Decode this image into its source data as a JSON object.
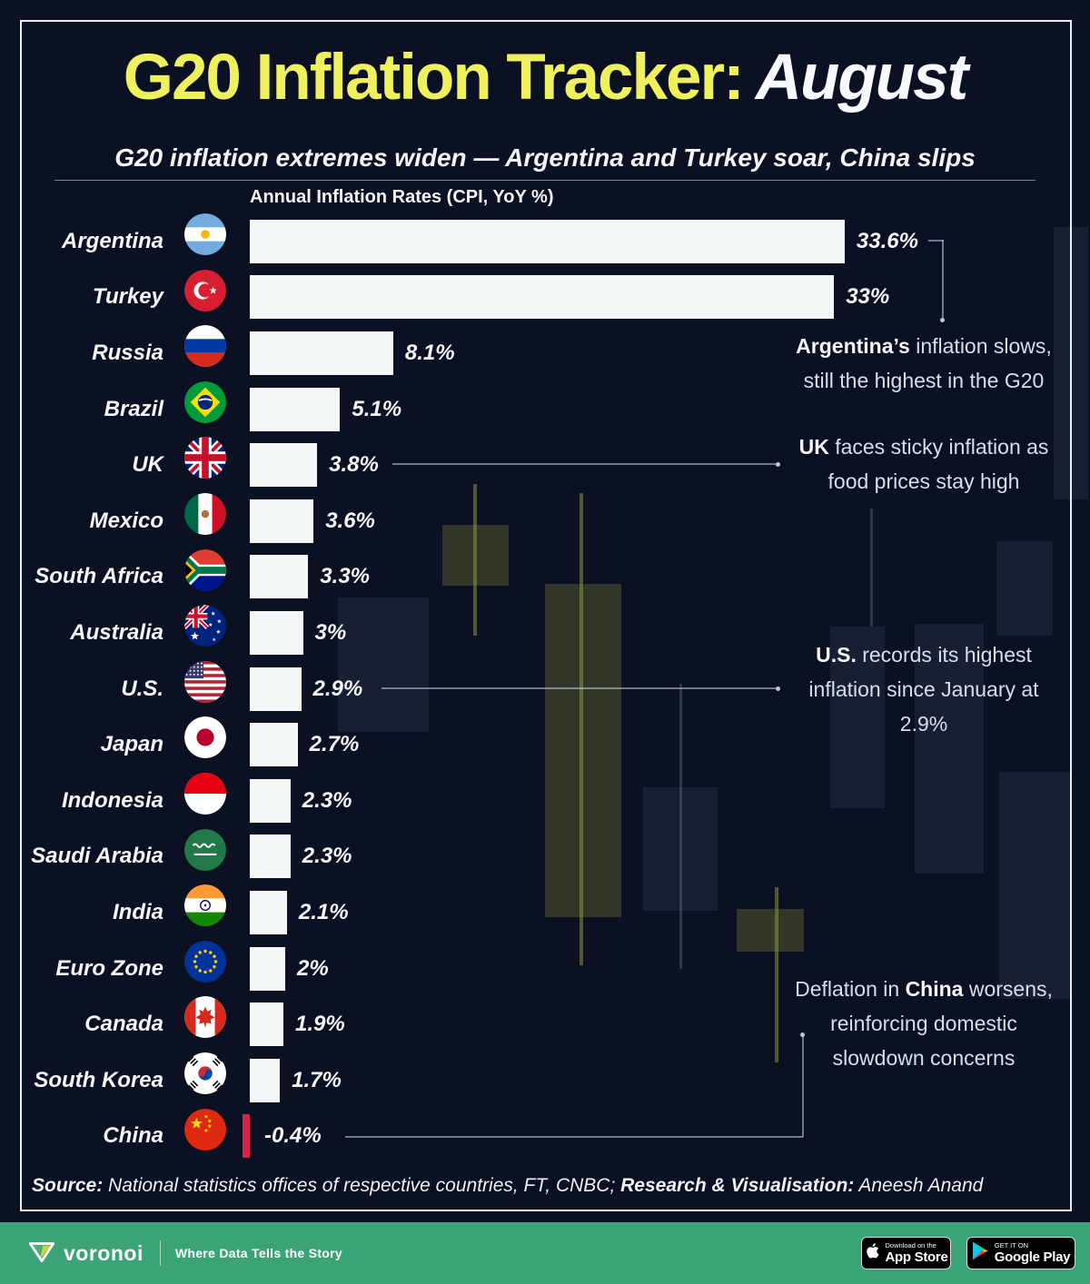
{
  "header": {
    "title_yellow": "G20 Inflation Tracker:",
    "title_white": "August",
    "subtitle": "G20 inflation extremes widen — Argentina and Turkey soar, China slips"
  },
  "chart_data": {
    "type": "bar",
    "orientation": "horizontal",
    "title": "Annual Inflation Rates (CPI, YoY %)",
    "xlim": [
      0,
      33.6
    ],
    "value_suffix": "%",
    "bar_color": "#f3f7f5",
    "negative_bar_color": "#d8214b",
    "categories": [
      "Argentina",
      "Turkey",
      "Russia",
      "Brazil",
      "UK",
      "Mexico",
      "South Africa",
      "Australia",
      "U.S.",
      "Japan",
      "Indonesia",
      "Saudi Arabia",
      "India",
      "Euro Zone",
      "Canada",
      "South Korea",
      "China"
    ],
    "values": [
      33.6,
      33,
      8.1,
      5.1,
      3.8,
      3.6,
      3.3,
      3,
      2.9,
      2.7,
      2.3,
      2.3,
      2.1,
      2,
      1.9,
      1.7,
      -0.4
    ],
    "value_labels": [
      "33.6%",
      "33%",
      "8.1%",
      "5.1%",
      "3.8%",
      "3.6%",
      "3.3%",
      "3%",
      "2.9%",
      "2.7%",
      "2.3%",
      "2.3%",
      "2.1%",
      "2%",
      "1.9%",
      "1.7%",
      "-0.4%"
    ],
    "rows": [
      {
        "country": "Argentina",
        "value": 33.6,
        "label": "33.6%",
        "flag_code": "ar",
        "flag_icon": "argentina-flag-icon"
      },
      {
        "country": "Turkey",
        "value": 33,
        "label": "33%",
        "flag_code": "tr",
        "flag_icon": "turkey-flag-icon"
      },
      {
        "country": "Russia",
        "value": 8.1,
        "label": "8.1%",
        "flag_code": "ru",
        "flag_icon": "russia-flag-icon"
      },
      {
        "country": "Brazil",
        "value": 5.1,
        "label": "5.1%",
        "flag_code": "br",
        "flag_icon": "brazil-flag-icon"
      },
      {
        "country": "UK",
        "value": 3.8,
        "label": "3.8%",
        "flag_code": "gb",
        "flag_icon": "uk-flag-icon"
      },
      {
        "country": "Mexico",
        "value": 3.6,
        "label": "3.6%",
        "flag_code": "mx",
        "flag_icon": "mexico-flag-icon"
      },
      {
        "country": "South Africa",
        "value": 3.3,
        "label": "3.3%",
        "flag_code": "za",
        "flag_icon": "south-africa-flag-icon"
      },
      {
        "country": "Australia",
        "value": 3,
        "label": "3%",
        "flag_code": "au",
        "flag_icon": "australia-flag-icon"
      },
      {
        "country": "U.S.",
        "value": 2.9,
        "label": "2.9%",
        "flag_code": "us",
        "flag_icon": "us-flag-icon"
      },
      {
        "country": "Japan",
        "value": 2.7,
        "label": "2.7%",
        "flag_code": "jp",
        "flag_icon": "japan-flag-icon"
      },
      {
        "country": "Indonesia",
        "value": 2.3,
        "label": "2.3%",
        "flag_code": "id",
        "flag_icon": "indonesia-flag-icon"
      },
      {
        "country": "Saudi Arabia",
        "value": 2.3,
        "label": "2.3%",
        "flag_code": "sa",
        "flag_icon": "saudi-arabia-flag-icon"
      },
      {
        "country": "India",
        "value": 2.1,
        "label": "2.1%",
        "flag_code": "in",
        "flag_icon": "india-flag-icon"
      },
      {
        "country": "Euro Zone",
        "value": 2,
        "label": "2%",
        "flag_code": "eu",
        "flag_icon": "euro-zone-flag-icon"
      },
      {
        "country": "Canada",
        "value": 1.9,
        "label": "1.9%",
        "flag_code": "ca",
        "flag_icon": "canada-flag-icon"
      },
      {
        "country": "South Korea",
        "value": 1.7,
        "label": "1.7%",
        "flag_code": "kr",
        "flag_icon": "south-korea-flag-icon"
      },
      {
        "country": "China",
        "value": -0.4,
        "label": "-0.4%",
        "flag_code": "cn",
        "flag_icon": "china-flag-icon"
      }
    ],
    "annotations": [
      {
        "id": "argentina",
        "lines": [
          [
            {
              "text": "Argentina’s",
              "bold": true
            },
            {
              "text": " inflation slows,"
            }
          ],
          [
            {
              "text": "still the highest in the G20"
            }
          ]
        ]
      },
      {
        "id": "uk",
        "lines": [
          [
            {
              "text": "UK",
              "bold": true
            },
            {
              "text": " faces sticky inflation as"
            }
          ],
          [
            {
              "text": "food prices stay high"
            }
          ]
        ]
      },
      {
        "id": "us",
        "lines": [
          [
            {
              "text": "U.S.",
              "bold": true
            },
            {
              "text": " records its highest"
            }
          ],
          [
            {
              "text": "inflation since January at"
            }
          ],
          [
            {
              "text": "2.9%"
            }
          ]
        ]
      },
      {
        "id": "china",
        "lines": [
          [
            {
              "text": "Deflation in "
            },
            {
              "text": "China",
              "bold": true
            },
            {
              "text": " worsens,"
            }
          ],
          [
            {
              "text": "reinforcing domestic"
            }
          ],
          [
            {
              "text": "slowdown concerns"
            }
          ]
        ]
      }
    ]
  },
  "source": {
    "label_bold": "Source:",
    "label_text": " National statistics offices of respective countries, FT, CNBC; ",
    "credit_bold": "Research & Visualisation:",
    "credit_text": " Aneesh Anand"
  },
  "footer": {
    "brand": "voronoi",
    "tagline": "Where Data Tells the Story",
    "appstore_small": "Download on the",
    "appstore_big": "App Store",
    "gplay_small": "GET IT ON",
    "gplay_big": "Google Play"
  },
  "colors": {
    "background": "#0b1022",
    "title_yellow": "#eef05e",
    "text_white": "#f3f6fa",
    "footer_green": "#3ba378",
    "negative_red": "#d8214b"
  }
}
